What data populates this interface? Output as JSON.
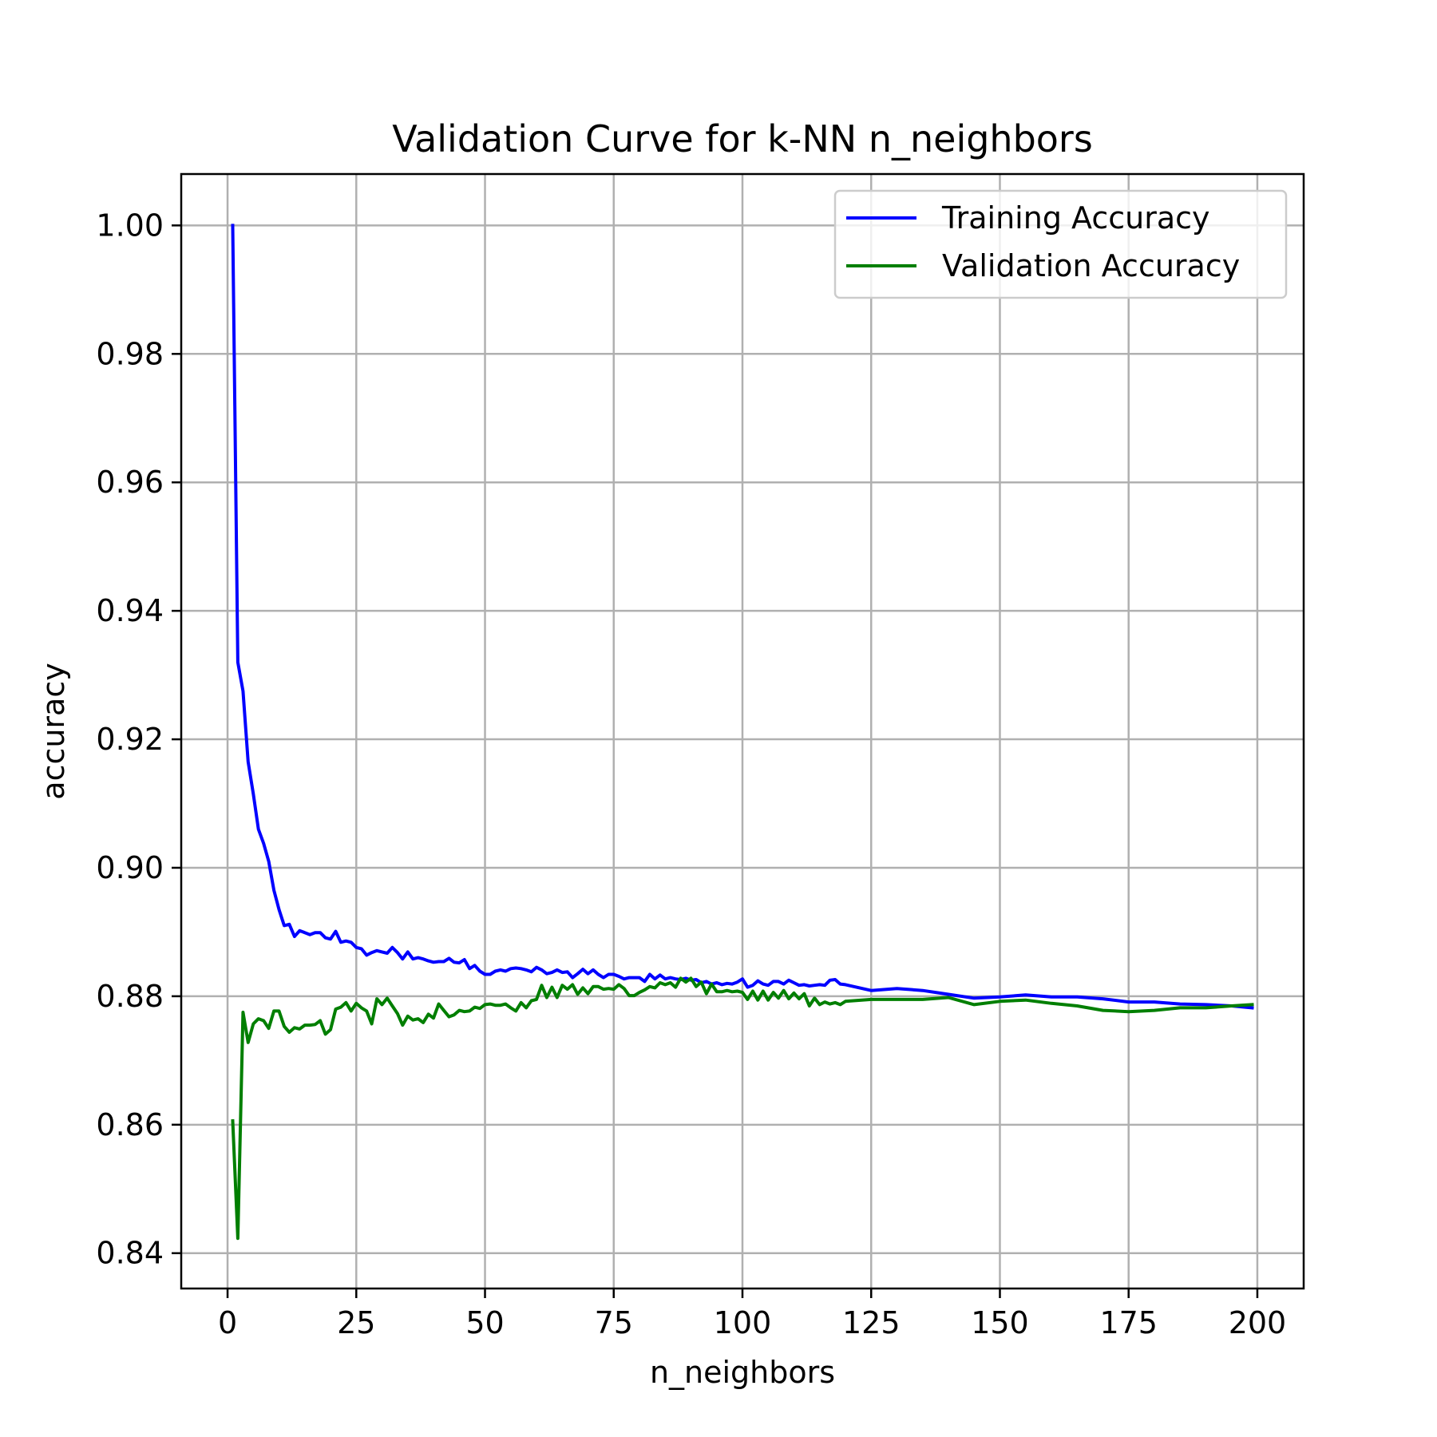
{
  "chart_data": {
    "type": "line",
    "title": "Validation Curve for k-NN n_neighbors",
    "xlabel": "n_neighbors",
    "ylabel": "accuracy",
    "xlim": [
      -9,
      209
    ],
    "ylim": [
      0.8345,
      1.008
    ],
    "xticks": [
      0,
      25,
      50,
      75,
      100,
      125,
      150,
      175,
      200
    ],
    "xtick_labels": [
      "0",
      "25",
      "50",
      "75",
      "100",
      "125",
      "150",
      "175",
      "200"
    ],
    "yticks": [
      0.84,
      0.86,
      0.88,
      0.9,
      0.92,
      0.94,
      0.96,
      0.98,
      1.0
    ],
    "ytick_labels": [
      "0.84",
      "0.86",
      "0.88",
      "0.90",
      "0.92",
      "0.94",
      "0.96",
      "0.98",
      "1.00"
    ],
    "grid": true,
    "legend_position": "top-right",
    "series": [
      {
        "name": "Training Accuracy",
        "color": "#0000ff",
        "x": [
          1,
          2,
          3,
          4,
          5,
          6,
          7,
          8,
          9,
          10,
          11,
          12,
          13,
          14,
          15,
          16,
          17,
          18,
          19,
          20,
          21,
          22,
          23,
          24,
          25,
          26,
          27,
          28,
          29,
          30,
          31,
          32,
          33,
          34,
          35,
          36,
          37,
          38,
          39,
          40,
          41,
          42,
          43,
          44,
          45,
          46,
          47,
          48,
          49,
          50,
          51,
          52,
          53,
          54,
          55,
          56,
          57,
          58,
          59,
          60,
          61,
          62,
          63,
          64,
          65,
          66,
          67,
          68,
          69,
          70,
          71,
          72,
          73,
          74,
          75,
          76,
          77,
          78,
          79,
          80,
          81,
          82,
          83,
          84,
          85,
          86,
          87,
          88,
          89,
          90,
          91,
          92,
          93,
          94,
          95,
          96,
          97,
          98,
          99,
          100,
          101,
          102,
          103,
          104,
          105,
          106,
          107,
          108,
          109,
          110,
          111,
          112,
          113,
          114,
          115,
          116,
          117,
          118,
          119,
          120,
          125,
          130,
          135,
          140,
          145,
          150,
          155,
          160,
          165,
          170,
          175,
          180,
          185,
          190,
          195,
          199
        ],
        "y": [
          1.0,
          0.932,
          0.9275,
          0.9165,
          0.9115,
          0.906,
          0.9038,
          0.901,
          0.8965,
          0.8935,
          0.891,
          0.8912,
          0.8893,
          0.8902,
          0.8899,
          0.8896,
          0.8899,
          0.8899,
          0.8891,
          0.8889,
          0.8901,
          0.8884,
          0.8886,
          0.8884,
          0.8876,
          0.8874,
          0.8864,
          0.8868,
          0.8871,
          0.8869,
          0.8867,
          0.8876,
          0.8868,
          0.8858,
          0.8869,
          0.8858,
          0.886,
          0.8858,
          0.8855,
          0.8853,
          0.8854,
          0.8854,
          0.8859,
          0.8853,
          0.8852,
          0.8857,
          0.8843,
          0.8848,
          0.8839,
          0.8834,
          0.8834,
          0.8839,
          0.8841,
          0.8839,
          0.8843,
          0.8844,
          0.8843,
          0.8841,
          0.8838,
          0.8845,
          0.8841,
          0.8835,
          0.8837,
          0.8841,
          0.8837,
          0.8838,
          0.8829,
          0.8835,
          0.8842,
          0.8835,
          0.8841,
          0.8834,
          0.8829,
          0.8834,
          0.8834,
          0.8831,
          0.8827,
          0.8829,
          0.8829,
          0.8829,
          0.8823,
          0.8834,
          0.8827,
          0.8833,
          0.8827,
          0.8829,
          0.8827,
          0.8826,
          0.8828,
          0.8825,
          0.8826,
          0.8821,
          0.8823,
          0.8819,
          0.8821,
          0.8818,
          0.882,
          0.8819,
          0.8822,
          0.8827,
          0.8814,
          0.8817,
          0.8824,
          0.8819,
          0.8817,
          0.8823,
          0.8823,
          0.8819,
          0.8825,
          0.8821,
          0.8817,
          0.8818,
          0.8816,
          0.8817,
          0.8818,
          0.8817,
          0.8825,
          0.8826,
          0.8819,
          0.8818,
          0.8809,
          0.8812,
          0.8809,
          0.8803,
          0.8797,
          0.8799,
          0.8802,
          0.8799,
          0.8799,
          0.8796,
          0.8791,
          0.8791,
          0.8788,
          0.8787,
          0.8785,
          0.8782
        ]
      },
      {
        "name": "Validation Accuracy",
        "color": "#007f00",
        "x": [
          1,
          2,
          3,
          4,
          5,
          6,
          7,
          8,
          9,
          10,
          11,
          12,
          13,
          14,
          15,
          16,
          17,
          18,
          19,
          20,
          21,
          22,
          23,
          24,
          25,
          26,
          27,
          28,
          29,
          30,
          31,
          32,
          33,
          34,
          35,
          36,
          37,
          38,
          39,
          40,
          41,
          42,
          43,
          44,
          45,
          46,
          47,
          48,
          49,
          50,
          51,
          52,
          53,
          54,
          55,
          56,
          57,
          58,
          59,
          60,
          61,
          62,
          63,
          64,
          65,
          66,
          67,
          68,
          69,
          70,
          71,
          72,
          73,
          74,
          75,
          76,
          77,
          78,
          79,
          80,
          81,
          82,
          83,
          84,
          85,
          86,
          87,
          88,
          89,
          90,
          91,
          92,
          93,
          94,
          95,
          96,
          97,
          98,
          99,
          100,
          101,
          102,
          103,
          104,
          105,
          106,
          107,
          108,
          109,
          110,
          111,
          112,
          113,
          114,
          115,
          116,
          117,
          118,
          119,
          120,
          125,
          130,
          135,
          140,
          145,
          150,
          155,
          160,
          165,
          170,
          175,
          180,
          185,
          190,
          195,
          199
        ],
        "y": [
          0.8606,
          0.8423,
          0.8775,
          0.8728,
          0.8757,
          0.8765,
          0.8762,
          0.875,
          0.8777,
          0.8777,
          0.8753,
          0.8744,
          0.8751,
          0.8749,
          0.8755,
          0.8755,
          0.8756,
          0.8762,
          0.8741,
          0.8748,
          0.878,
          0.8783,
          0.879,
          0.8777,
          0.8789,
          0.8782,
          0.8777,
          0.8757,
          0.8796,
          0.8787,
          0.8797,
          0.8785,
          0.8773,
          0.8755,
          0.8769,
          0.8763,
          0.8765,
          0.8759,
          0.8772,
          0.8766,
          0.8788,
          0.8778,
          0.8768,
          0.8771,
          0.8778,
          0.8776,
          0.8777,
          0.8783,
          0.8781,
          0.8787,
          0.8788,
          0.8786,
          0.8786,
          0.8788,
          0.8782,
          0.8777,
          0.879,
          0.8782,
          0.8793,
          0.8795,
          0.8817,
          0.8798,
          0.8814,
          0.8798,
          0.8817,
          0.8811,
          0.8818,
          0.8803,
          0.8813,
          0.8804,
          0.8815,
          0.8815,
          0.8811,
          0.8812,
          0.8811,
          0.8818,
          0.8812,
          0.8801,
          0.8801,
          0.8806,
          0.881,
          0.8815,
          0.8813,
          0.8821,
          0.8818,
          0.8821,
          0.8814,
          0.8828,
          0.8822,
          0.8828,
          0.8815,
          0.8822,
          0.8804,
          0.8819,
          0.8807,
          0.8807,
          0.8809,
          0.8807,
          0.8808,
          0.8806,
          0.8795,
          0.8808,
          0.8794,
          0.8808,
          0.8794,
          0.8806,
          0.8797,
          0.8809,
          0.8796,
          0.8805,
          0.8796,
          0.8804,
          0.8785,
          0.8797,
          0.8787,
          0.8791,
          0.8788,
          0.879,
          0.8787,
          0.8792,
          0.8795,
          0.8795,
          0.8795,
          0.8798,
          0.8787,
          0.8792,
          0.8794,
          0.8789,
          0.8785,
          0.8778,
          0.8776,
          0.8778,
          0.8782,
          0.8782,
          0.8785,
          0.8787
        ]
      }
    ]
  }
}
